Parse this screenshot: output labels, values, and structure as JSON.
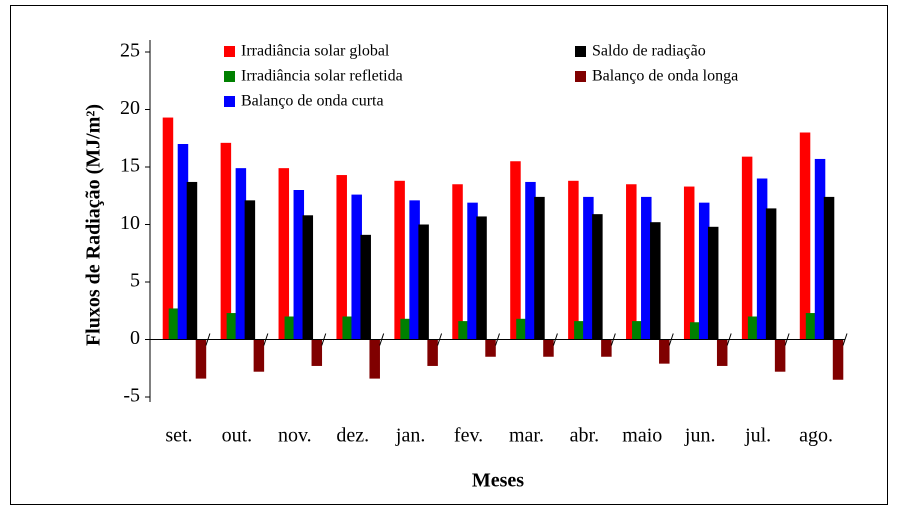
{
  "chart_data": {
    "type": "bar",
    "x_label": "Meses",
    "y_label": "Fluxos de Radiação (MJ/m²)",
    "categories": [
      "set.",
      "out.",
      "nov.",
      "dez.",
      "jan.",
      "fev.",
      "mar.",
      "abr.",
      "maio",
      "jun.",
      "jul.",
      "ago."
    ],
    "series": [
      {
        "name": "Irradiância solar global",
        "color": "#ff0000",
        "values": [
          19.3,
          17.1,
          14.9,
          14.3,
          13.8,
          13.5,
          15.5,
          13.8,
          13.5,
          13.3,
          15.9,
          18.0
        ]
      },
      {
        "name": "Irradiância solar refletida",
        "color": "#008000",
        "values": [
          2.7,
          2.3,
          2.0,
          2.0,
          1.8,
          1.6,
          1.8,
          1.6,
          1.6,
          1.5,
          2.0,
          2.3
        ]
      },
      {
        "name": "Balanço de onda curta",
        "color": "#0000ff",
        "values": [
          17.0,
          14.9,
          13.0,
          12.6,
          12.1,
          11.9,
          13.7,
          12.4,
          12.4,
          11.9,
          14.0,
          15.7
        ]
      },
      {
        "name": "Saldo de radiação",
        "color": "#000000",
        "values": [
          13.7,
          12.1,
          10.8,
          9.1,
          10.0,
          10.7,
          12.4,
          10.9,
          10.2,
          9.8,
          11.4,
          12.4
        ]
      },
      {
        "name": "Balanço de onda longa",
        "color": "#800000",
        "values": [
          -3.4,
          -2.8,
          -2.3,
          -3.4,
          -2.3,
          -1.5,
          -1.5,
          -1.5,
          -2.1,
          -2.3,
          -2.8,
          -3.5
        ]
      }
    ],
    "ylim": [
      -5,
      25
    ],
    "yticks": [
      -5,
      0,
      5,
      10,
      15,
      20,
      25
    ]
  }
}
